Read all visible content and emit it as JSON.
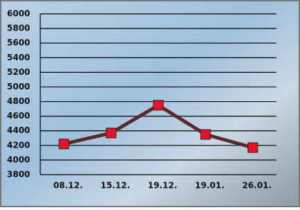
{
  "chart_data": {
    "type": "line",
    "categories": [
      "08.12.",
      "15.12.",
      "19.12.",
      "19.01.",
      "26.01."
    ],
    "values": [
      4220,
      4370,
      4750,
      4350,
      4170
    ],
    "color": "#5a2a28",
    "marker_color": "#e3132c",
    "ylim": [
      3800,
      6000
    ],
    "yticks": [
      3800,
      4000,
      4200,
      4400,
      4600,
      4800,
      5000,
      5200,
      5400,
      5600,
      5800,
      6000
    ],
    "grid": true
  }
}
